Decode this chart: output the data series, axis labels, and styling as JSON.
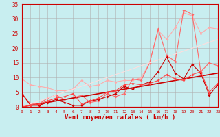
{
  "xlabel": "Vent moyen/en rafales ( km/h )",
  "xlim": [
    0,
    23
  ],
  "ylim": [
    0,
    35
  ],
  "xticks": [
    0,
    1,
    2,
    3,
    4,
    5,
    6,
    7,
    8,
    9,
    10,
    11,
    12,
    13,
    14,
    15,
    16,
    17,
    18,
    19,
    20,
    21,
    22,
    23
  ],
  "yticks": [
    0,
    5,
    10,
    15,
    20,
    25,
    30,
    35
  ],
  "background_color": "#c8eef0",
  "grid_color": "#b0b0b0",
  "series": [
    {
      "x": [
        0,
        1,
        2,
        3,
        4,
        5,
        6,
        7,
        8,
        9,
        10,
        11,
        12,
        13,
        14,
        15,
        16,
        17,
        18,
        19,
        20,
        21,
        22,
        23
      ],
      "y": [
        9.5,
        7.5,
        7.0,
        6.5,
        5.5,
        5.5,
        6.0,
        9.0,
        7.0,
        7.5,
        9.0,
        8.5,
        9.0,
        9.0,
        10.0,
        15.0,
        26.0,
        23.0,
        27.0,
        32.0,
        31.0,
        25.0,
        27.0,
        26.5
      ],
      "color": "#ffaaaa",
      "linewidth": 0.8,
      "markersize": 2.0,
      "marker": true
    },
    {
      "x": [
        0,
        1,
        2,
        3,
        4,
        5,
        6,
        7,
        8,
        9,
        10,
        11,
        12,
        13,
        14,
        15,
        16,
        17,
        18,
        19,
        20,
        21,
        22,
        23
      ],
      "y": [
        4.5,
        1.0,
        1.0,
        3.0,
        4.0,
        2.5,
        3.0,
        4.0,
        1.5,
        2.0,
        4.5,
        3.5,
        4.5,
        9.5,
        9.0,
        15.0,
        26.5,
        17.5,
        15.5,
        33.0,
        31.5,
        12.0,
        15.0,
        14.0
      ],
      "color": "#ff6666",
      "linewidth": 0.8,
      "markersize": 2.0,
      "marker": true
    },
    {
      "x": [
        0,
        1,
        2,
        3,
        4,
        5,
        6,
        7,
        8,
        9,
        10,
        11,
        12,
        13,
        14,
        15,
        16,
        17,
        18,
        19,
        20,
        21,
        22,
        23
      ],
      "y": [
        0.0,
        0.5,
        1.0,
        1.5,
        2.0,
        2.5,
        3.0,
        3.5,
        4.0,
        4.5,
        5.0,
        5.5,
        6.0,
        6.5,
        7.0,
        7.5,
        8.0,
        8.5,
        9.0,
        9.5,
        10.0,
        10.5,
        11.0,
        11.5
      ],
      "color": "#cc0000",
      "linewidth": 1.2,
      "markersize": 0,
      "marker": false
    },
    {
      "x": [
        0,
        1,
        2,
        3,
        4,
        5,
        6,
        7,
        8,
        9,
        10,
        11,
        12,
        13,
        14,
        15,
        16,
        17,
        18,
        19,
        20,
        21,
        22,
        23
      ],
      "y": [
        0.0,
        1.0,
        2.0,
        3.0,
        4.0,
        5.0,
        6.0,
        7.0,
        8.0,
        9.0,
        10.0,
        11.0,
        12.0,
        13.0,
        14.0,
        15.0,
        16.0,
        17.0,
        18.0,
        19.0,
        20.0,
        21.0,
        22.0,
        23.0
      ],
      "color": "#ffdddd",
      "linewidth": 0.8,
      "markersize": 0,
      "marker": false
    },
    {
      "x": [
        0,
        1,
        2,
        3,
        4,
        5,
        6,
        7,
        8,
        9,
        10,
        11,
        12,
        13,
        14,
        15,
        16,
        17,
        18,
        19,
        20,
        21,
        22,
        23
      ],
      "y": [
        4.5,
        0.5,
        0.5,
        1.5,
        2.5,
        1.5,
        0.5,
        0.5,
        2.0,
        2.5,
        3.5,
        4.5,
        7.0,
        6.0,
        7.5,
        8.5,
        12.0,
        17.0,
        11.5,
        9.5,
        14.5,
        11.5,
        4.0,
        7.5
      ],
      "color": "#cc0000",
      "linewidth": 0.8,
      "markersize": 2.0,
      "marker": true
    },
    {
      "x": [
        0,
        1,
        2,
        3,
        4,
        5,
        6,
        7,
        8,
        9,
        10,
        11,
        12,
        13,
        14,
        15,
        16,
        17,
        18,
        19,
        20,
        21,
        22,
        23
      ],
      "y": [
        0.0,
        0.5,
        1.0,
        2.0,
        3.0,
        3.5,
        4.5,
        1.0,
        2.0,
        3.0,
        5.0,
        5.5,
        7.5,
        8.0,
        7.5,
        8.0,
        9.0,
        11.0,
        9.5,
        9.0,
        11.0,
        12.0,
        5.0,
        8.0
      ],
      "color": "#ff4444",
      "linewidth": 0.8,
      "markersize": 2.0,
      "marker": true
    }
  ]
}
